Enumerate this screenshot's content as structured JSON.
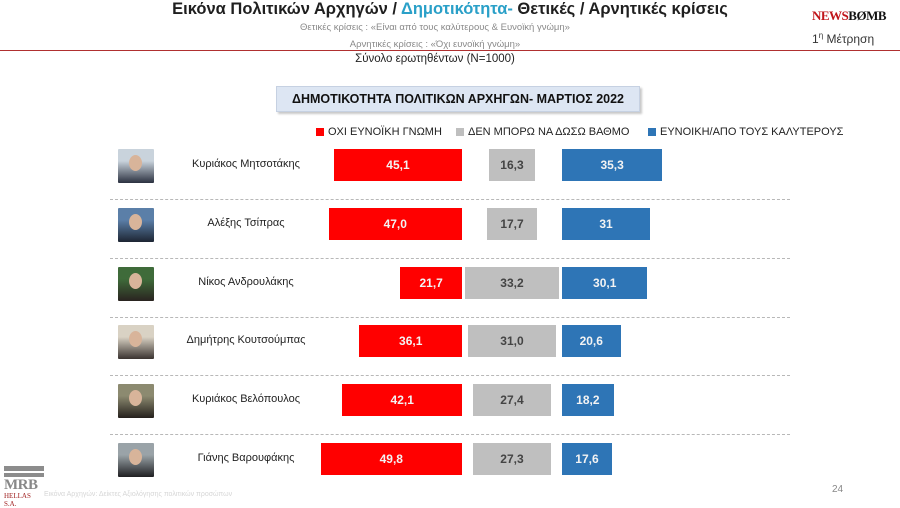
{
  "header": {
    "title_part1": "Εικόνα Πολιτικών Αρχηγών  / ",
    "title_accent": "Δημοτικότητα-",
    "title_part2": " Θετικές / Αρνητικές κρίσεις",
    "subtitle_positive": "Θετικές κρίσεις : «Είναι από τους καλύτερους &  Ευνοϊκή γνώμη»",
    "subtitle_negative": "Αρνητικές κρίσεις : «Όχι ευνοϊκή γνώμη»",
    "total": "Σύνολο ερωτηθέντων (N=1000)",
    "logo_text_red": "NEWS",
    "logo_text_dark": "BØMB",
    "measure_prefix": "1",
    "measure_sup": "η",
    "measure_suffix": " Μέτρηση"
  },
  "footer": {
    "mrb_logo": "MRB",
    "mrb_logo_sub": "HELLAS S.A.",
    "footnote": "Εικόνα Αρχηγών: Δείκτες Αξιολόγησης πολιτικών προσώπων",
    "page_number": "24"
  },
  "colors": {
    "negative": "#ff0000",
    "neutral": "#bfbfbf",
    "positive": "#2e75b6",
    "accent": "#2aa0c8"
  },
  "chart_data": {
    "type": "bar",
    "orientation": "horizontal",
    "title": "ΔΗΜΟΤΙΚΟΤΗΤΑ  ΠΟΛΙΤΙΚΩΝ ΑΡΧΗΓΩΝ- ΜΑΡΤΙΟΣ 2022",
    "categories": [
      "Κυριάκος Μητσοτάκης",
      "Αλέξης Τσίπρας",
      "Νίκος Ανδρουλάκης",
      "Δημήτρης Κουτσούμπας",
      "Κυριάκος Βελόπουλος",
      "Γιάνης Βαρουφάκης"
    ],
    "series": [
      {
        "name": "ΟΧΙ ΕΥΝΟΪΚΗ ΓΝΩΜΗ",
        "color": "#ff0000",
        "values": [
          45.1,
          47.0,
          21.7,
          36.1,
          42.1,
          49.8
        ],
        "labels": [
          "45,1",
          "47,0",
          "21,7",
          "36,1",
          "42,1",
          "49,8"
        ]
      },
      {
        "name": "ΔΕΝ ΜΠΟΡΩ ΝΑ ΔΩΣΩ ΒΑΘΜΟ",
        "color": "#bfbfbf",
        "values": [
          16.3,
          17.7,
          33.2,
          31.0,
          27.4,
          27.3
        ],
        "labels": [
          "16,3",
          "17,7",
          "33,2",
          "31,0",
          "27,4",
          "27,3"
        ]
      },
      {
        "name": "ΕΥΝΟΙΚΗ/ΑΠΟ ΤΟΥΣ ΚΑΛΥΤΕΡΟΥΣ",
        "color": "#2e75b6",
        "values": [
          35.3,
          31,
          30.1,
          20.6,
          18.2,
          17.6
        ],
        "labels": [
          "35,3",
          "31",
          "30,1",
          "20,6",
          "18,2",
          "17,6"
        ]
      }
    ],
    "legend_position": "top-right",
    "unit": "%"
  }
}
